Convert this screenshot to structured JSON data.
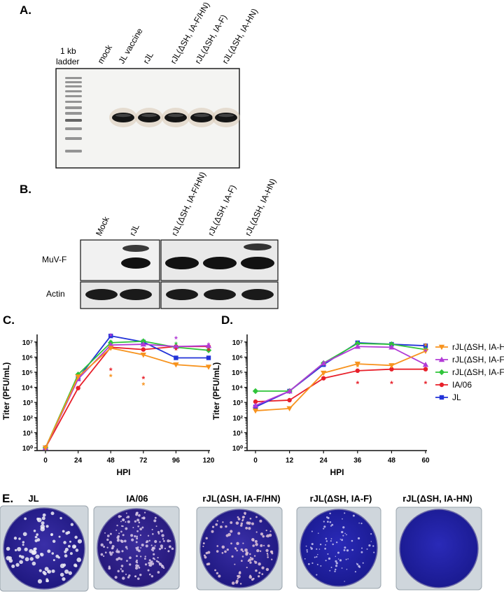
{
  "panelA": {
    "letter": "A.",
    "ladder_label_1": "1 kb",
    "ladder_label_2": "ladder",
    "lanes": [
      "mock",
      "JL vaccine",
      "rJL",
      "rJL(ΔSH, IA-F/HN)",
      "rJL(ΔSH, IA-F)",
      "rJL(ΔSH, IA-HN)"
    ]
  },
  "panelB": {
    "letter": "B.",
    "lanes": [
      "Mock",
      "rJL",
      "rJL(ΔSH, IA-F/HN)",
      "rJL(ΔSH, IA-F)",
      "rJL(ΔSH, IA-HN)"
    ],
    "row_labels": [
      "MuV-F",
      "Actin"
    ]
  },
  "panelC": {
    "letter": "C."
  },
  "panelD": {
    "letter": "D."
  },
  "legend": [
    {
      "name": "rJL(ΔSH, IA-HN)",
      "color": "#f7931e",
      "marker": "triangle-down"
    },
    {
      "name": "rJL(ΔSH, IA-F)",
      "color": "#b23bd6",
      "marker": "triangle-up"
    },
    {
      "name": "rJL(ΔSH, IA-F/HN)",
      "color": "#2fc43a",
      "marker": "diamond"
    },
    {
      "name": "IA/06",
      "color": "#e8202a",
      "marker": "circle"
    },
    {
      "name": "JL",
      "color": "#2233d8",
      "marker": "square"
    }
  ],
  "chart_data": [
    {
      "type": "line",
      "xlabel": "HPI",
      "ylabel": "Titer (PFU/mL)",
      "x": [
        0,
        24,
        48,
        72,
        96,
        120
      ],
      "x_ticks": [
        "0",
        "24",
        "48",
        "72",
        "96",
        "120"
      ],
      "y_scale": "log",
      "y_ticks": [
        "10⁰",
        "10¹",
        "10²",
        "10³",
        "10⁴",
        "10⁵",
        "10⁶",
        "10⁷"
      ],
      "ylim_log10": [
        0,
        7.5
      ],
      "series": [
        {
          "name": "rJL(ΔSH, IA-HN)",
          "log10_values": [
            0,
            4.7,
            6.6,
            6.15,
            5.5,
            5.35
          ]
        },
        {
          "name": "rJL(ΔSH, IA-F)",
          "log10_values": [
            0,
            4.55,
            6.8,
            6.85,
            6.7,
            6.75
          ]
        },
        {
          "name": "rJL(ΔSH, IA-F/HN)",
          "log10_values": [
            0,
            4.85,
            6.95,
            7.05,
            6.65,
            6.45
          ]
        },
        {
          "name": "IA/06",
          "log10_values": [
            0,
            3.95,
            6.65,
            6.5,
            6.7,
            6.7
          ]
        },
        {
          "name": "JL",
          "log10_values": [
            0,
            4.6,
            7.4,
            7.0,
            5.95,
            5.95
          ]
        }
      ]
    },
    {
      "type": "line",
      "xlabel": "HPI",
      "ylabel": "Titer (PFU/mL)",
      "x": [
        0,
        12,
        24,
        36,
        48,
        60
      ],
      "x_ticks": [
        "0",
        "12",
        "24",
        "36",
        "48",
        "60"
      ],
      "y_scale": "log",
      "y_ticks": [
        "10⁰",
        "10¹",
        "10²",
        "10³",
        "10⁴",
        "10⁵",
        "10⁶",
        "10⁷"
      ],
      "ylim_log10": [
        0,
        7.5
      ],
      "series": [
        {
          "name": "rJL(ΔSH, IA-HN)",
          "log10_values": [
            2.45,
            2.6,
            4.95,
            5.55,
            5.45,
            6.4
          ]
        },
        {
          "name": "rJL(ΔSH, IA-F)",
          "log10_values": [
            2.8,
            3.75,
            5.6,
            6.7,
            6.65,
            5.5
          ]
        },
        {
          "name": "rJL(ΔSH, IA-F/HN)",
          "log10_values": [
            3.75,
            3.75,
            5.6,
            6.9,
            6.85,
            6.5
          ]
        },
        {
          "name": "IA/06",
          "log10_values": [
            3.05,
            3.15,
            4.6,
            5.1,
            5.2,
            5.2
          ]
        },
        {
          "name": "JL",
          "log10_values": [
            2.7,
            3.75,
            5.5,
            6.95,
            6.85,
            6.75
          ]
        }
      ]
    }
  ],
  "panelE": {
    "letter": "E.",
    "plates": [
      "JL",
      "IA/06",
      "rJL(ΔSH, IA-F/HN)",
      "rJL(ΔSH, IA-F)",
      "rJL(ΔSH, IA-HN)"
    ]
  }
}
